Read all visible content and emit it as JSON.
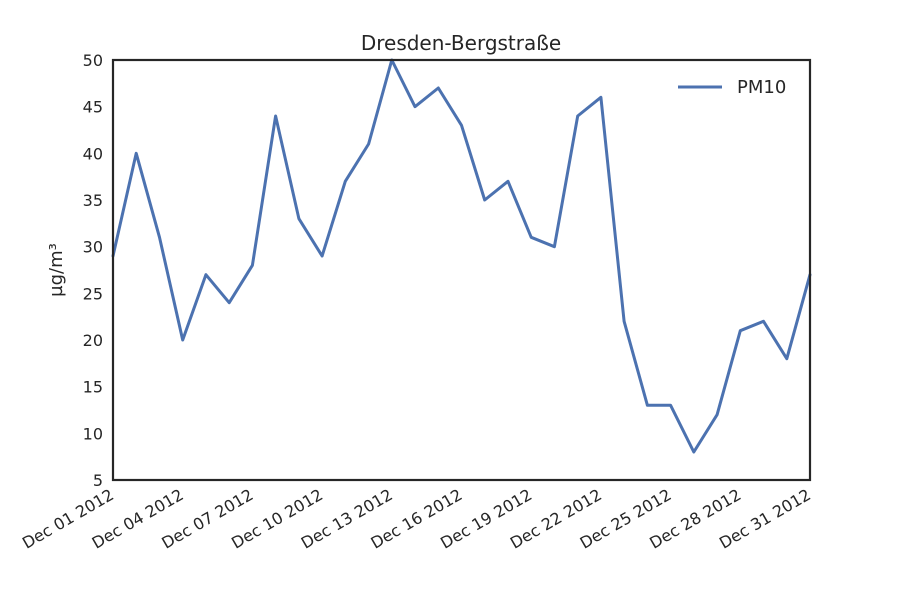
{
  "chart_data": {
    "type": "line",
    "title": "Dresden-Bergstraße",
    "xlabel": "",
    "ylabel": "µg/m³",
    "ylim": [
      5,
      50
    ],
    "yticks": [
      5,
      10,
      15,
      20,
      25,
      30,
      35,
      40,
      45,
      50
    ],
    "xlim": [
      "2012-12-01",
      "2012-12-31"
    ],
    "xticks": [
      "2012-12-01",
      "2012-12-04",
      "2012-12-07",
      "2012-12-10",
      "2012-12-13",
      "2012-12-16",
      "2012-12-19",
      "2012-12-22",
      "2012-12-25",
      "2012-12-28",
      "2012-12-31"
    ],
    "xtick_labels": [
      "Dec 01 2012",
      "Dec 04 2012",
      "Dec 07 2012",
      "Dec 10 2012",
      "Dec 13 2012",
      "Dec 16 2012",
      "Dec 19 2012",
      "Dec 22 2012",
      "Dec 25 2012",
      "Dec 28 2012",
      "Dec 31 2012"
    ],
    "grid": false,
    "legend": "top-right",
    "x": [
      "2012-12-01",
      "2012-12-02",
      "2012-12-03",
      "2012-12-04",
      "2012-12-05",
      "2012-12-06",
      "2012-12-07",
      "2012-12-08",
      "2012-12-09",
      "2012-12-10",
      "2012-12-11",
      "2012-12-12",
      "2012-12-13",
      "2012-12-14",
      "2012-12-15",
      "2012-12-16",
      "2012-12-17",
      "2012-12-18",
      "2012-12-19",
      "2012-12-20",
      "2012-12-21",
      "2012-12-22",
      "2012-12-23",
      "2012-12-24",
      "2012-12-25",
      "2012-12-26",
      "2012-12-27",
      "2012-12-28",
      "2012-12-29",
      "2012-12-30",
      "2012-12-31"
    ],
    "series": [
      {
        "name": "PM10",
        "color": "#4c72b0",
        "values": [
          29,
          40,
          31,
          20,
          27,
          24,
          28,
          44,
          33,
          29,
          37,
          41,
          50,
          45,
          47,
          43,
          35,
          37,
          31,
          30,
          44,
          46,
          22,
          13,
          13,
          8,
          12,
          21,
          22,
          18,
          27
        ]
      }
    ]
  }
}
